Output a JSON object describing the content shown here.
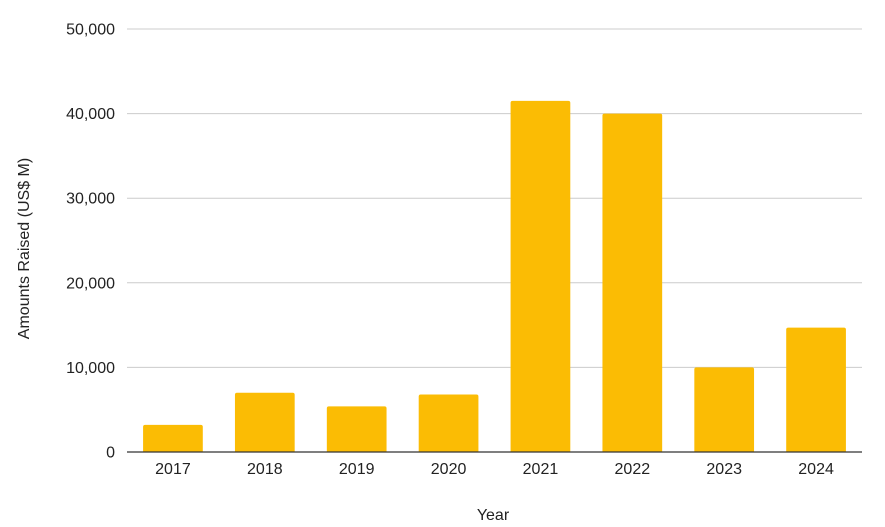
{
  "chart_data": {
    "type": "bar",
    "title": "",
    "xlabel": "Year",
    "ylabel": "Amounts Raised (US$ M)",
    "categories": [
      "2017",
      "2018",
      "2019",
      "2020",
      "2021",
      "2022",
      "2023",
      "2024"
    ],
    "series": [
      {
        "values": [
          3200,
          7000,
          5400,
          6800,
          41500,
          40000,
          10000,
          14700
        ]
      }
    ],
    "ylim": [
      0,
      50000
    ],
    "yticks": [
      0,
      10000,
      20000,
      30000,
      40000,
      50000
    ],
    "ytick_labels": [
      "0",
      "10,000",
      "20,000",
      "30,000",
      "40,000",
      "50,000"
    ],
    "grid": true,
    "legend": "none",
    "bar_color": "#FBBC04",
    "grid_color": "#CCCCCC",
    "axis_color": "#333333"
  }
}
